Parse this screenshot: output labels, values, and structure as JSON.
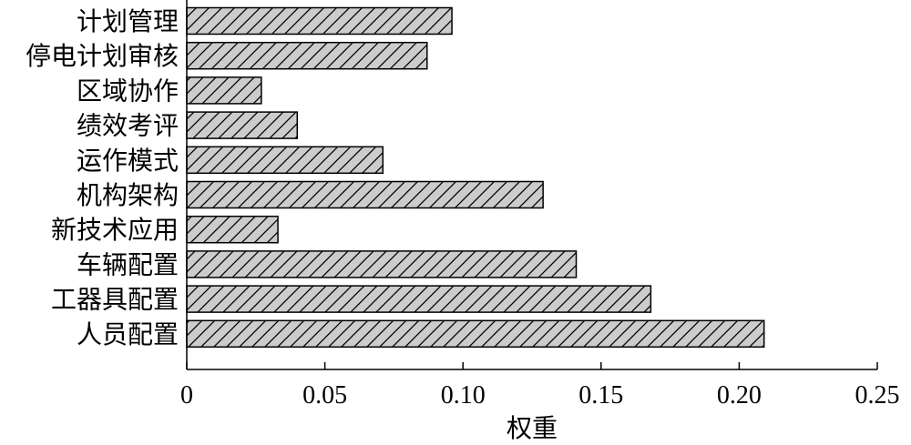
{
  "chart_data": {
    "type": "bar",
    "orientation": "horizontal",
    "categories": [
      "计划管理",
      "停电计划审核",
      "区域协作",
      "绩效考评",
      "运作模式",
      "机构架构",
      "新技术应用",
      "车辆配置",
      "工器具配置",
      "人员配置"
    ],
    "values": [
      0.096,
      0.087,
      0.027,
      0.04,
      0.071,
      0.129,
      0.033,
      0.141,
      0.168,
      0.209
    ],
    "title": "",
    "xlabel": "权重",
    "ylabel": "",
    "xlim": [
      0,
      0.25
    ],
    "xticks": [
      "0",
      "0.05",
      "0.10",
      "0.15",
      "0.20",
      "0.25"
    ],
    "xtick_values": [
      0,
      0.05,
      0.1,
      0.15,
      0.2,
      0.25
    ],
    "grid": false,
    "legend": "none",
    "bar_fill": "#cccccc",
    "bar_hatch": "diagonal",
    "bar_stroke": "#000000"
  }
}
